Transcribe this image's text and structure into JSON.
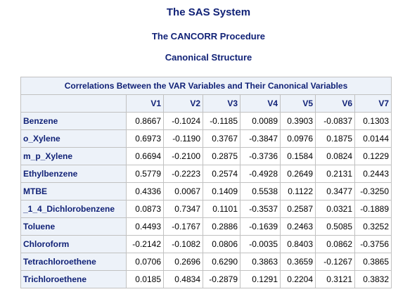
{
  "titles": {
    "system": "The SAS System",
    "procedure": "The CANCORR Procedure",
    "section": "Canonical Structure"
  },
  "table": {
    "caption": "Correlations Between the VAR Variables and Their Canonical Variables",
    "columns": [
      "V1",
      "V2",
      "V3",
      "V4",
      "V5",
      "V6",
      "V7"
    ],
    "rows": [
      {
        "label": "Benzene",
        "values": [
          "0.8667",
          "-0.1024",
          "-0.1185",
          "0.0089",
          "0.3903",
          "-0.0837",
          "0.1303"
        ]
      },
      {
        "label": "o_Xylene",
        "values": [
          "0.6973",
          "-0.1190",
          "0.3767",
          "-0.3847",
          "0.0976",
          "0.1875",
          "0.0144"
        ]
      },
      {
        "label": "m_p_Xylene",
        "values": [
          "0.6694",
          "-0.2100",
          "0.2875",
          "-0.3736",
          "0.1584",
          "0.0824",
          "0.1229"
        ]
      },
      {
        "label": "Ethylbenzene",
        "values": [
          "0.5779",
          "-0.2223",
          "0.2574",
          "-0.4928",
          "0.2649",
          "0.2131",
          "0.2443"
        ]
      },
      {
        "label": "MTBE",
        "values": [
          "0.4336",
          "0.0067",
          "0.1409",
          "0.5538",
          "0.1122",
          "0.3477",
          "-0.3250"
        ]
      },
      {
        "label": "_1_4_Dichlorobenzene",
        "values": [
          "0.0873",
          "0.7347",
          "0.1101",
          "-0.3537",
          "0.2587",
          "0.0321",
          "-0.1889"
        ]
      },
      {
        "label": "Toluene",
        "values": [
          "0.4493",
          "-0.1767",
          "0.2886",
          "-0.1639",
          "0.2463",
          "0.5085",
          "0.3252"
        ]
      },
      {
        "label": "Chloroform",
        "values": [
          "-0.2142",
          "-0.1082",
          "0.0806",
          "-0.0035",
          "0.8403",
          "0.0862",
          "-0.3756"
        ]
      },
      {
        "label": "Tetrachloroethene",
        "values": [
          "0.0706",
          "0.2696",
          "0.6290",
          "0.3863",
          "0.3659",
          "-0.1267",
          "0.3865"
        ]
      },
      {
        "label": "Trichloroethene",
        "values": [
          "0.0185",
          "0.4834",
          "-0.2879",
          "0.1291",
          "0.2204",
          "0.3121",
          "0.3832"
        ]
      }
    ]
  }
}
